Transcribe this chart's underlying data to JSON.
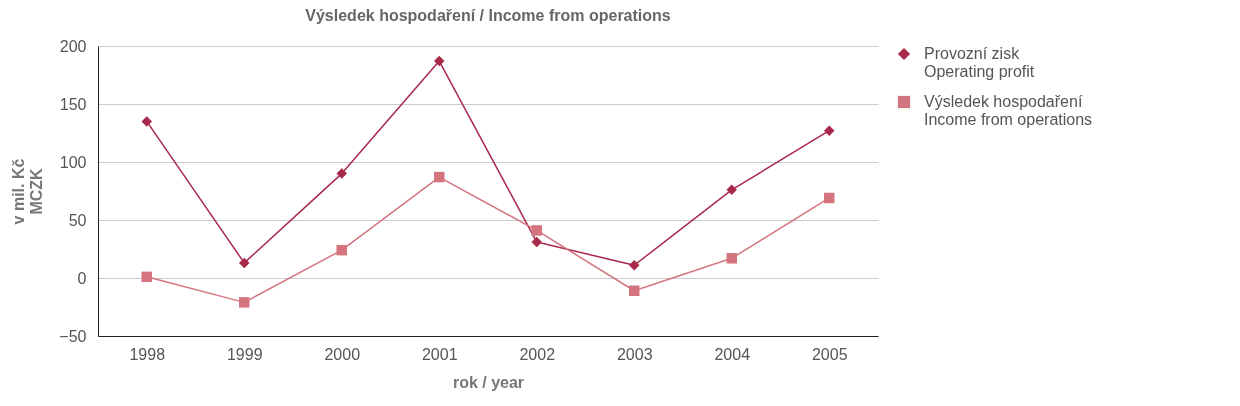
{
  "chart_data": {
    "type": "line",
    "title": "Výsledek hospodaření / Income from operations",
    "xlabel": "rok / year",
    "ylabel": "v mil. Kč\nMCZK",
    "categories": [
      "1998",
      "1999",
      "2000",
      "2001",
      "2002",
      "2003",
      "2004",
      "2005"
    ],
    "series": [
      {
        "name": "Provozní zisk\nOperating profit",
        "color": "#a8294a",
        "marker": "diamond",
        "values": [
          135,
          13,
          90,
          187,
          31,
          11,
          76,
          127
        ]
      },
      {
        "name": "Výsledek hospodaření\nIncome from operations",
        "color": "#d4747f",
        "marker": "square",
        "values": [
          1,
          -21,
          24,
          87,
          41,
          -11,
          17,
          69
        ]
      }
    ],
    "ylim": [
      -50,
      200
    ],
    "yticks": [
      -50,
      0,
      50,
      100,
      150,
      200
    ],
    "grid": "y",
    "legend": "right",
    "line_style": "solid"
  }
}
